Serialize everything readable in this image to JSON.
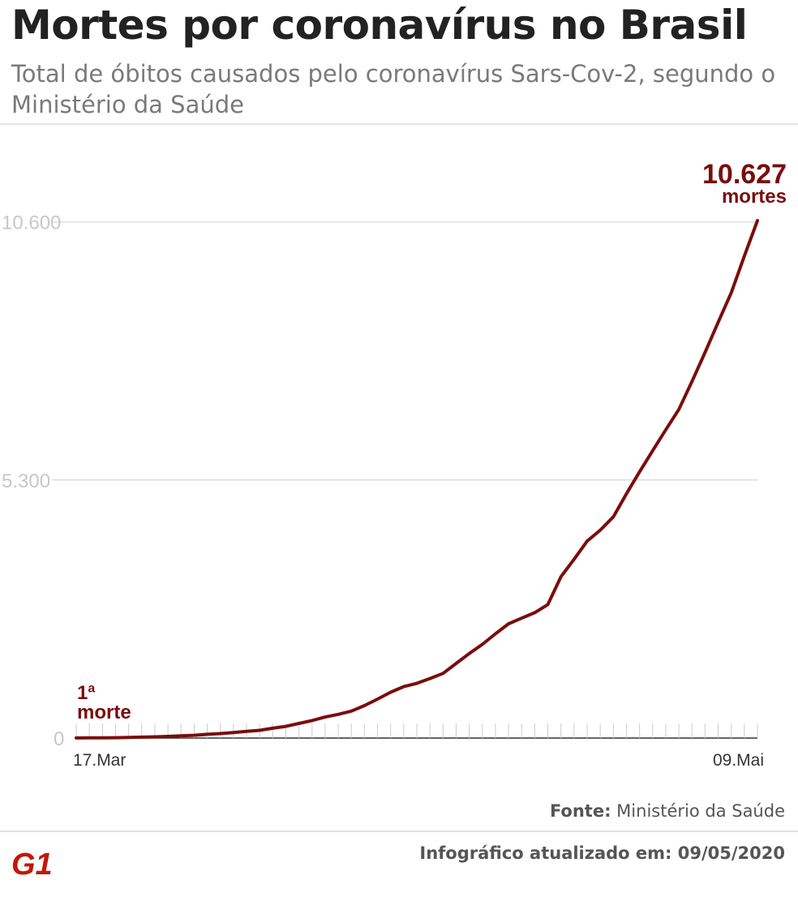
{
  "header": {
    "title": "Mortes por coronavírus no Brasil",
    "subtitle": "Total de óbitos causados pelo coronavírus Sars-Cov-2, segundo o Ministério da Saúde"
  },
  "colors": {
    "line": "#7a0d0d",
    "grid": "#dddddd",
    "tick_label": "#c8c8c8",
    "logo": "#c4170c"
  },
  "chart_data": {
    "type": "line",
    "title": "Mortes por coronavírus no Brasil",
    "xlabel": "",
    "ylabel": "",
    "x_start": "17.Mar",
    "x_end": "09.Mai",
    "ylim": [
      0,
      10627
    ],
    "yticks": [
      0,
      5300,
      10600
    ],
    "ytick_labels": [
      "0",
      "5.300",
      "10.600"
    ],
    "xtick_labels": [
      "17.Mar",
      "09.Mai"
    ],
    "grid": true,
    "series": [
      {
        "values": [
          1,
          3,
          4,
          7,
          11,
          18,
          25,
          34,
          46,
          57,
          77,
          92,
          114,
          136,
          159,
          201,
          240,
          299,
          359,
          432,
          486,
          553,
          667,
          800,
          941,
          1056,
          1124,
          1223,
          1328,
          1532,
          1736,
          1924,
          2141,
          2347,
          2462,
          2575,
          2741,
          3313,
          3670,
          4045,
          4271,
          4543,
          5017,
          5466,
          5901,
          6329,
          6750,
          7321,
          7921,
          8536,
          9146,
          9897,
          10627
        ]
      }
    ],
    "annotations": [
      {
        "label": "1ª\nmorte"
      },
      {
        "value": "10.627",
        "unit": "mortes"
      }
    ]
  },
  "annotations": {
    "first_line1": "1ª",
    "first_line2": "morte",
    "last_value": "10.627",
    "last_unit": "mortes"
  },
  "footer": {
    "source_label": "Fonte:",
    "source_text": " Ministério da Saúde",
    "logo_text": "G1",
    "updated": "Infográfico atualizado em: 09/05/2020"
  }
}
